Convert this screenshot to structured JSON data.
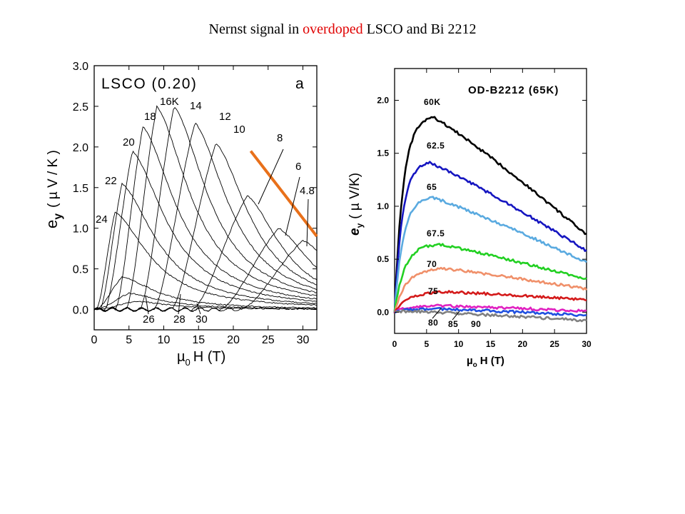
{
  "slide": {
    "title_prefix": "Nernst signal in ",
    "title_highlight": "overdoped",
    "title_suffix": " LSCO and Bi 2212",
    "highlight_color": "#e00000"
  },
  "chart_data": [
    {
      "type": "line",
      "panel_label": "a",
      "sample_label": "LSCO (0.20)",
      "xlabel_mu": "µ",
      "xlabel_sub": "0",
      "xlabel_rest": "H (T)",
      "ylabel_e": "e",
      "ylabel_sub": "y",
      "ylabel_units": "( µ V / K )",
      "xlim": [
        0,
        32
      ],
      "ylim": [
        -0.25,
        3.0
      ],
      "xticks": [
        0,
        5,
        10,
        15,
        20,
        25,
        30
      ],
      "yticks": [
        0.0,
        0.5,
        1.0,
        1.5,
        2.0,
        2.5,
        3.0
      ],
      "ytick_labels": [
        "0.0",
        "0.5",
        "1.0",
        "1.5",
        "2.0",
        "2.5",
        "3.0"
      ],
      "line_color": "#000000",
      "highlight_line": {
        "color": "#e8701a",
        "x": [
          22.5,
          32
        ],
        "y": [
          1.95,
          0.9
        ]
      },
      "series": [
        {
          "name": "24",
          "label": "24",
          "onset": 0.3,
          "peak_x": 3.0,
          "peak_y": 1.2
        },
        {
          "name": "22",
          "label": "22",
          "onset": 0.8,
          "peak_x": 4.0,
          "peak_y": 1.55
        },
        {
          "name": "20",
          "label": "20",
          "onset": 1.5,
          "peak_x": 5.5,
          "peak_y": 1.95
        },
        {
          "name": "18",
          "label": "18",
          "onset": 3.0,
          "peak_x": 7.0,
          "peak_y": 2.25
        },
        {
          "name": "16K",
          "label": "16K",
          "onset": 4.5,
          "peak_x": 9.0,
          "peak_y": 2.5
        },
        {
          "name": "14",
          "label": "14",
          "onset": 6.5,
          "peak_x": 11.5,
          "peak_y": 2.5
        },
        {
          "name": "12",
          "label": "12",
          "onset": 8.5,
          "peak_x": 14.5,
          "peak_y": 2.3
        },
        {
          "name": "10",
          "label": "10",
          "onset": 11.0,
          "peak_x": 17.5,
          "peak_y": 2.05
        },
        {
          "name": "8",
          "label": "8",
          "onset": 14.0,
          "peak_x": 22.0,
          "peak_y": 1.4
        },
        {
          "name": "6",
          "label": "6",
          "onset": 18.0,
          "peak_x": 26.5,
          "peak_y": 1.0
        },
        {
          "name": "4.8",
          "label": "4.8",
          "onset": 21.0,
          "peak_x": 30.0,
          "peak_y": 0.85
        },
        {
          "name": "26",
          "label": "26",
          "onset": 0.3,
          "peak_x": 4.0,
          "peak_y": 0.4
        },
        {
          "name": "28",
          "label": "28",
          "onset": 0.3,
          "peak_x": 5.0,
          "peak_y": 0.2
        },
        {
          "name": "30",
          "label": "30",
          "onset": 0.3,
          "peak_x": 6.0,
          "peak_y": 0.1
        }
      ]
    },
    {
      "type": "line",
      "panel_label": "OD-B2212 (65K)",
      "xlabel_mu": "µ",
      "xlabel_sub": "o",
      "xlabel_rest": "H (T)",
      "ylabel_e": "e",
      "ylabel_sub": "y",
      "ylabel_units": "( µ V/K)",
      "xlim": [
        0,
        30
      ],
      "ylim": [
        -0.2,
        2.3
      ],
      "xticks": [
        0,
        5,
        10,
        15,
        20,
        25,
        30
      ],
      "yticks": [
        0.0,
        0.5,
        1.0,
        1.5,
        2.0
      ],
      "ytick_labels": [
        "0.0",
        "0.5",
        "1.0",
        "1.5",
        "2.0"
      ],
      "series": [
        {
          "name": "60K",
          "label": "60K",
          "color": "#000000",
          "peak_x": 6.0,
          "peak_y": 1.84,
          "end_y": 0.73
        },
        {
          "name": "62.5",
          "label": "62.5",
          "color": "#1515c0",
          "peak_x": 5.5,
          "peak_y": 1.41,
          "end_y": 0.58
        },
        {
          "name": "65",
          "label": "65",
          "color": "#5aaae0",
          "peak_x": 6.0,
          "peak_y": 1.08,
          "end_y": 0.47
        },
        {
          "name": "67.5",
          "label": "67.5",
          "color": "#22d022",
          "peak_x": 7.0,
          "peak_y": 0.64,
          "end_y": 0.31
        },
        {
          "name": "70",
          "label": "70",
          "color": "#f0906a",
          "peak_x": 8.0,
          "peak_y": 0.41,
          "end_y": 0.22
        },
        {
          "name": "75",
          "label": "75",
          "color": "#d41a1a",
          "peak_x": 9.0,
          "peak_y": 0.19,
          "end_y": 0.12
        },
        {
          "name": "80",
          "label": "80",
          "color": "#e020c0",
          "peak_x": 8.0,
          "peak_y": 0.06,
          "end_y": 0.01
        },
        {
          "name": "85",
          "label": "85",
          "color": "#2050e0",
          "peak_x": 8.0,
          "peak_y": 0.03,
          "end_y": -0.03
        },
        {
          "name": "90",
          "label": "90",
          "color": "#808080",
          "peak_x": 3.0,
          "peak_y": 0.01,
          "end_y": -0.08
        }
      ]
    }
  ]
}
